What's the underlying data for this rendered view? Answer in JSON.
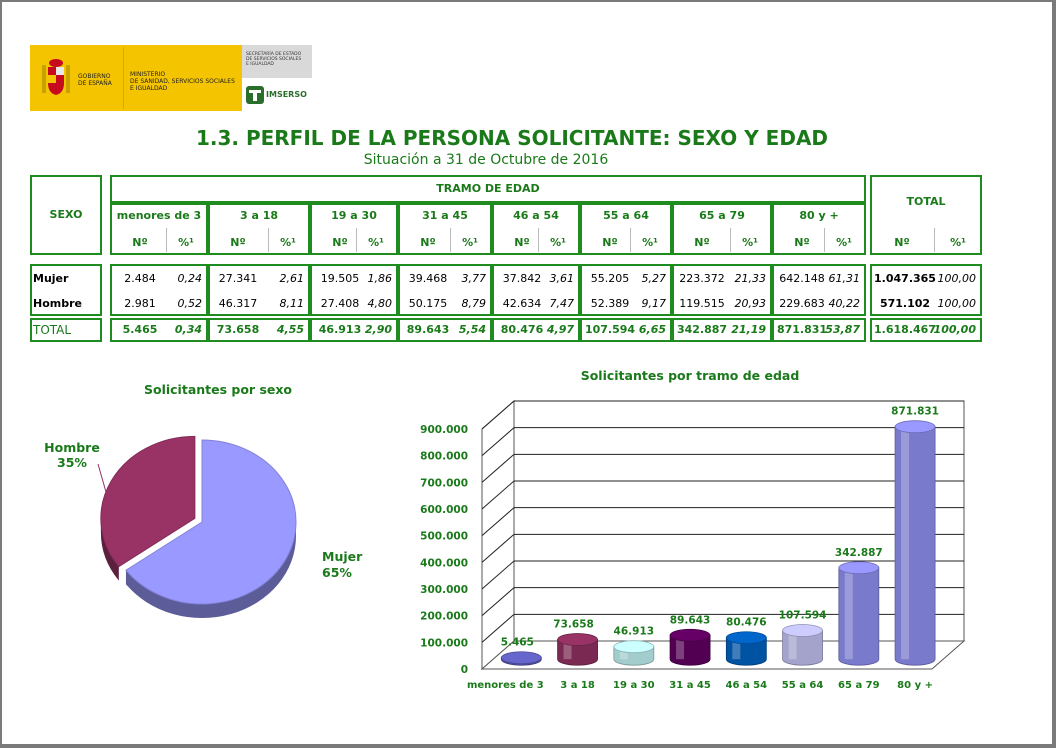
{
  "logos": {
    "gobierno": [
      "GOBIERNO",
      "DE ESPAÑA"
    ],
    "ministerio": [
      "MINISTERIO",
      "DE SANIDAD, SERVICIOS SOCIALES",
      "E IGUALDAD"
    ],
    "secretaria": [
      "SECRETARÍA DE ESTADO",
      "DE SERVICIOS SOCIALES",
      "E IGUALDAD"
    ],
    "imserso": "IMSERSO"
  },
  "title": "1.3. PERFIL DE LA PERSONA SOLICITANTE: SEXO Y EDAD",
  "subtitle": "Situación a 31 de Octubre de 2016",
  "table": {
    "sexo_header": "SEXO",
    "tramo_header": "TRAMO DE EDAD",
    "total_header": "TOTAL",
    "n_label": "Nº",
    "pct_label": "%¹",
    "total_pct_label": "%¹",
    "groups": [
      "menores de 3",
      "3 a 18",
      "19 a 30",
      "31 a 45",
      "46 a 54",
      "55 a 64",
      "65 a 79",
      "80 y +"
    ],
    "rows": [
      {
        "label": "Mujer",
        "cells": [
          [
            "2.484",
            "0,24"
          ],
          [
            "27.341",
            "2,61"
          ],
          [
            "19.505",
            "1,86"
          ],
          [
            "39.468",
            "3,77"
          ],
          [
            "37.842",
            "3,61"
          ],
          [
            "55.205",
            "5,27"
          ],
          [
            "223.372",
            "21,33"
          ],
          [
            "642.148",
            "61,31"
          ]
        ],
        "total": [
          "1.047.365",
          "100,00"
        ]
      },
      {
        "label": "Hombre",
        "cells": [
          [
            "2.981",
            "0,52"
          ],
          [
            "46.317",
            "8,11"
          ],
          [
            "27.408",
            "4,80"
          ],
          [
            "50.175",
            "8,79"
          ],
          [
            "42.634",
            "7,47"
          ],
          [
            "52.389",
            "9,17"
          ],
          [
            "119.515",
            "20,93"
          ],
          [
            "229.683",
            "40,22"
          ]
        ],
        "total": [
          "571.102",
          "100,00"
        ]
      }
    ],
    "total_row": {
      "label": "TOTAL",
      "cells": [
        [
          "5.465",
          "0,34"
        ],
        [
          "73.658",
          "4,55"
        ],
        [
          "46.913",
          "2,90"
        ],
        [
          "89.643",
          "5,54"
        ],
        [
          "80.476",
          "4,97"
        ],
        [
          "107.594",
          "6,65"
        ],
        [
          "342.887",
          "21,19"
        ],
        [
          "871.831",
          "53,87"
        ]
      ],
      "total": [
        "1.618.467",
        "100,00"
      ]
    }
  },
  "chart_data": [
    {
      "type": "pie",
      "title": "Solicitantes por sexo",
      "labels": [
        "Mujer",
        "Hombre"
      ],
      "values": [
        65,
        35
      ],
      "value_labels": [
        "65%",
        "35%"
      ],
      "colors": [
        "#9999ff",
        "#993366"
      ]
    },
    {
      "type": "bar",
      "title": "Solicitantes por tramo de edad",
      "categories": [
        "menores de 3",
        "3 a 18",
        "19 a 30",
        "31 a 45",
        "46 a 54",
        "55 a 64",
        "65 a 79",
        "80 y +"
      ],
      "values": [
        5465,
        73658,
        46913,
        89643,
        80476,
        107594,
        342887,
        871831
      ],
      "value_labels": [
        "5.465",
        "73.658",
        "46.913",
        "89.643",
        "80.476",
        "107.594",
        "342.887",
        "871.831"
      ],
      "ylim": [
        0,
        900000
      ],
      "yticks": [
        "0",
        "100.000",
        "200.000",
        "300.000",
        "400.000",
        "500.000",
        "600.000",
        "700.000",
        "800.000",
        "900.000"
      ],
      "grid": true,
      "colors": [
        "#6666cc",
        "#993366",
        "#ccffff",
        "#660066",
        "#0066cc",
        "#ccccff",
        "#9999ff",
        "#9999ff"
      ]
    }
  ]
}
